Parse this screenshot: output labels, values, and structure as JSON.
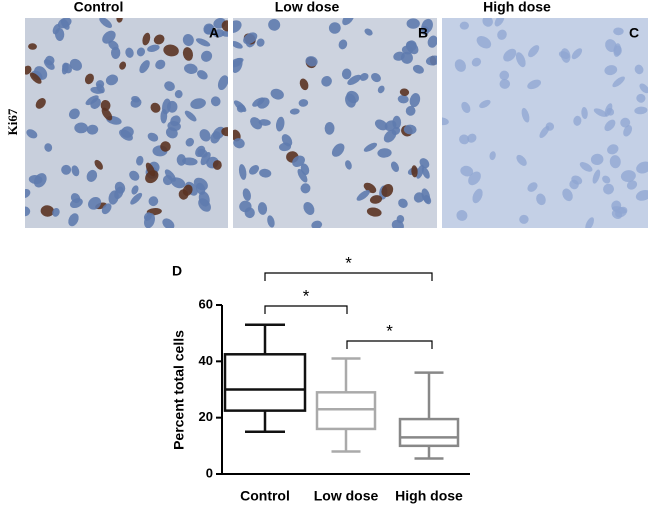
{
  "row_label": "Ki67",
  "panels": [
    {
      "title": "Control",
      "letter": "A"
    },
    {
      "title": "Low dose",
      "letter": "B"
    },
    {
      "title": "High dose",
      "letter": "C"
    }
  ],
  "chart_data": {
    "type": "box",
    "panel_label": "D",
    "y_label": "Percent total cells",
    "categories": [
      "Control",
      "Low dose",
      "High dose"
    ],
    "colors": [
      "#111111",
      "#aaaaaa",
      "#888888"
    ],
    "stats": [
      {
        "whislo": 15,
        "q1": 22.5,
        "med": 30,
        "q3": 42.5,
        "whishi": 53
      },
      {
        "whislo": 8,
        "q1": 16,
        "med": 23,
        "q3": 29,
        "whishi": 41
      },
      {
        "whislo": 5.5,
        "q1": 10,
        "med": 13,
        "q3": 19.5,
        "whishi": 36
      }
    ],
    "ylim": [
      0,
      60
    ],
    "yticks": [
      0,
      20,
      40,
      60
    ],
    "annotations": [
      "*",
      "*",
      "*"
    ]
  }
}
